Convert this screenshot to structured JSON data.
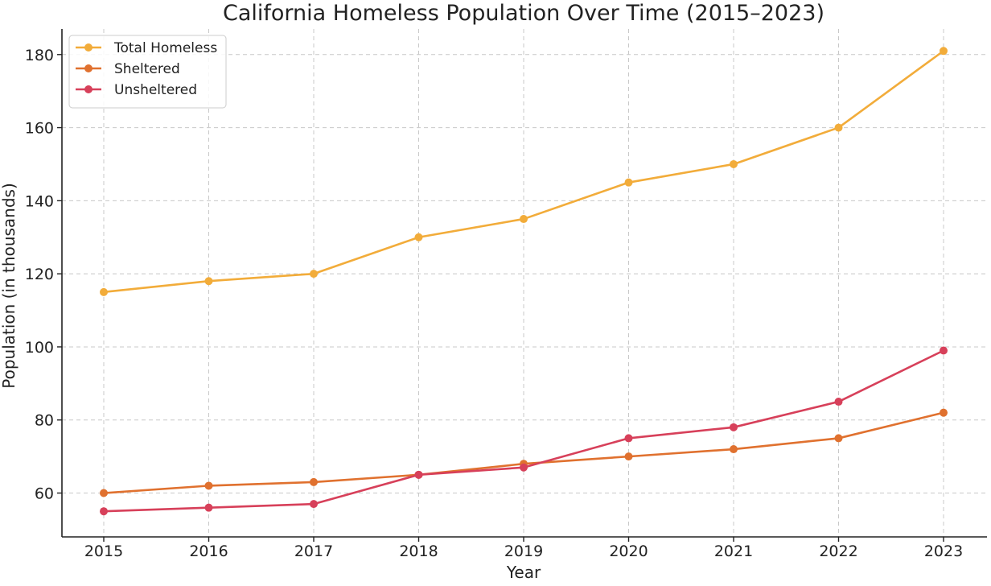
{
  "chart_data": {
    "type": "line",
    "title": "California Homeless Population Over Time (2015–2023)",
    "xlabel": "Year",
    "ylabel": "Population (in thousands)",
    "x": [
      "2015",
      "2016",
      "2017",
      "2018",
      "2019",
      "2020",
      "2021",
      "2022",
      "2023"
    ],
    "ylim": [
      48,
      187
    ],
    "yticks": [
      "60",
      "80",
      "100",
      "120",
      "140",
      "160",
      "180"
    ],
    "grid": true,
    "legend_position": "top-left",
    "series": [
      {
        "name": "Total Homeless",
        "color": "#f2ac3a",
        "values": [
          115,
          118,
          120,
          130,
          135,
          145,
          150,
          160,
          181
        ]
      },
      {
        "name": "Sheltered",
        "color": "#e0712f",
        "values": [
          60,
          62,
          63,
          65,
          68,
          70,
          72,
          75,
          82
        ]
      },
      {
        "name": "Unsheltered",
        "color": "#d7405a",
        "values": [
          55,
          56,
          57,
          65,
          67,
          75,
          78,
          85,
          99
        ]
      }
    ]
  }
}
